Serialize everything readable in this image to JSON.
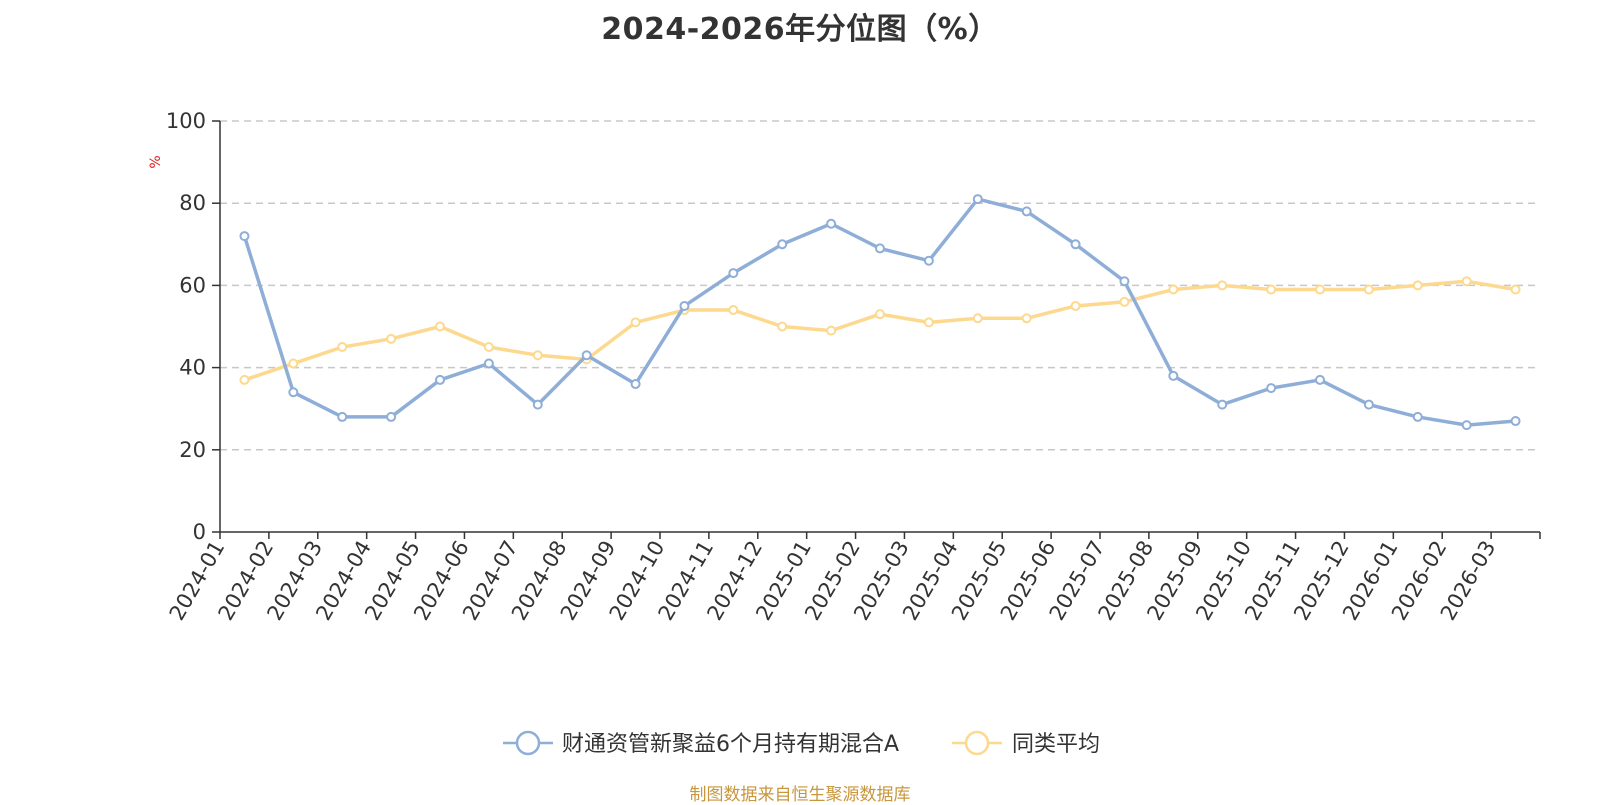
{
  "chart_data": {
    "type": "line",
    "title": "2024-2026年分位图（%）",
    "ylabel": "%",
    "xlabel": "",
    "ylim": [
      0,
      100
    ],
    "y_ticks": [
      0,
      20,
      40,
      60,
      80,
      100
    ],
    "grid": true,
    "legend_position": "bottom-center",
    "categories": [
      "2024-01",
      "2024-02",
      "2024-03",
      "2024-04",
      "2024-05",
      "2024-06",
      "2024-07",
      "2024-08",
      "2024-09",
      "2024-10",
      "2024-11",
      "2024-12",
      "2025-01",
      "2025-02",
      "2025-03",
      "2025-04",
      "2025-05",
      "2025-06",
      "2025-07",
      "2025-08",
      "2025-09",
      "2025-10",
      "2025-11",
      "2025-12",
      "2026-01",
      "2026-02",
      "2026-03"
    ],
    "series": [
      {
        "name": "财通资管新聚益6个月持有期混合A",
        "color": "#8eaed8",
        "values": [
          72,
          34,
          28,
          28,
          37,
          41,
          31,
          43,
          36,
          55,
          63,
          70,
          75,
          69,
          66,
          81,
          78,
          70,
          61,
          38,
          31,
          35,
          37,
          31,
          28,
          26,
          27
        ]
      },
      {
        "name": "同类平均",
        "color": "#fcd98e",
        "values": [
          37,
          41,
          45,
          47,
          50,
          45,
          43,
          42,
          51,
          54,
          54,
          50,
          49,
          53,
          51,
          52,
          52,
          55,
          56,
          59,
          60,
          59,
          59,
          59,
          60,
          61,
          59
        ]
      }
    ]
  },
  "source_note": "制图数据来自恒生聚源数据库"
}
